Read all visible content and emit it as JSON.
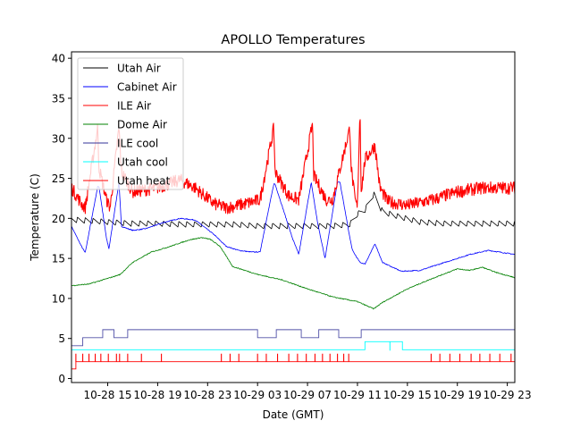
{
  "chart_data": {
    "type": "line",
    "title": "APOLLO Temperatures",
    "xlabel": "Date (GMT)",
    "ylabel": "Temperature (C)",
    "x_unit": "hours since 10-28 00:00 GMT",
    "xlim": [
      12.1,
      47.6
    ],
    "ylim": [
      -0.5,
      40.8
    ],
    "yticks": [
      0,
      5,
      10,
      15,
      20,
      25,
      30,
      35,
      40
    ],
    "xticks": [
      {
        "t": 15,
        "label": "10-28 15"
      },
      {
        "t": 19,
        "label": "10-28 19"
      },
      {
        "t": 23,
        "label": "10-28 23"
      },
      {
        "t": 27,
        "label": "10-29 03"
      },
      {
        "t": 31,
        "label": "10-29 07"
      },
      {
        "t": 35,
        "label": "10-29 11"
      },
      {
        "t": 39,
        "label": "10-29 15"
      },
      {
        "t": 43,
        "label": "10-29 19"
      },
      {
        "t": 47,
        "label": "10-29 23"
      }
    ],
    "grid": false,
    "legend_position": "top-left",
    "series": [
      {
        "name": "Utah Air",
        "color": "#000000",
        "style": "sawtooth",
        "x": [
          12.1,
          15.0,
          17.0,
          19.0,
          21.0,
          23.0,
          25.0,
          27.0,
          29.0,
          31.0,
          33.0,
          34.4,
          35.0,
          35.6,
          36.3,
          37.0,
          38.0,
          40.0,
          42.0,
          44.0,
          46.0,
          47.6
        ],
        "y": [
          19.8,
          19.5,
          19.3,
          19.3,
          19.2,
          19.2,
          19.2,
          19.0,
          19.0,
          19.0,
          19.0,
          19.2,
          20.5,
          21.0,
          23.0,
          20.8,
          20.3,
          19.5,
          19.3,
          19.3,
          19.3,
          19.3
        ]
      },
      {
        "name": "Cabinet Air",
        "color": "#0000ff",
        "x": [
          12.1,
          12.9,
          13.2,
          14.2,
          14.3,
          14.9,
          15.1,
          15.9,
          16.1,
          17.0,
          18.0,
          19.5,
          20.8,
          22.0,
          23.5,
          24.5,
          25.5,
          26.5,
          27.2,
          28.3,
          28.4,
          29.8,
          30.3,
          31.3,
          31.8,
          32.4,
          33.4,
          33.6,
          34.4,
          34.6,
          35.2,
          35.6,
          36.4,
          36.5,
          37.0,
          38.5,
          40.0,
          42.0,
          44.0,
          45.5,
          47.6
        ],
        "y": [
          19.0,
          16.5,
          15.7,
          24.0,
          24.0,
          17.5,
          16.2,
          24.5,
          19.0,
          18.5,
          18.7,
          19.5,
          20.0,
          19.8,
          18.0,
          16.5,
          16.0,
          15.8,
          15.8,
          24.3,
          24.3,
          17.5,
          15.5,
          24.5,
          19.5,
          15.0,
          24.5,
          24.5,
          17.5,
          16.0,
          14.5,
          14.3,
          16.8,
          16.5,
          14.5,
          13.4,
          13.5,
          14.5,
          15.5,
          16.0,
          15.5
        ]
      },
      {
        "name": "ILE Air",
        "color": "#ff0000",
        "style": "noisy",
        "x": [
          12.1,
          12.9,
          13.2,
          14.2,
          14.3,
          14.9,
          15.2,
          15.9,
          16.1,
          17.0,
          19.0,
          20.8,
          22.0,
          23.5,
          24.5,
          26.0,
          27.2,
          28.3,
          28.4,
          29.5,
          30.3,
          31.4,
          31.5,
          32.5,
          33.0,
          34.4,
          34.5,
          34.8,
          35.0,
          35.2,
          35.3,
          35.6,
          36.4,
          36.8,
          37.4,
          39.0,
          41.0,
          43.0,
          45.0,
          47.6
        ],
        "y": [
          23.5,
          21.5,
          21.0,
          31.0,
          26.0,
          22.0,
          21.0,
          31.0,
          25.5,
          23.0,
          23.5,
          24.5,
          23.5,
          21.5,
          21.0,
          21.5,
          22.0,
          31.0,
          25.5,
          22.5,
          22.0,
          31.5,
          25.0,
          22.0,
          22.0,
          31.0,
          26.0,
          22.0,
          21.0,
          33.5,
          23.0,
          27.0,
          28.8,
          23.5,
          21.8,
          21.3,
          22.0,
          23.0,
          23.5,
          23.5
        ]
      },
      {
        "name": "Dome Air",
        "color": "#008000",
        "x": [
          12.1,
          13.5,
          15.0,
          16.0,
          17.0,
          18.5,
          20.0,
          21.5,
          22.5,
          23.2,
          24.0,
          25.0,
          27.0,
          29.0,
          31.0,
          33.0,
          35.0,
          36.3,
          37.0,
          39.0,
          41.0,
          43.0,
          44.0,
          45.0,
          46.0,
          47.6
        ],
        "y": [
          11.6,
          11.8,
          12.5,
          13.0,
          14.5,
          15.8,
          16.5,
          17.3,
          17.6,
          17.4,
          16.5,
          14.0,
          13.0,
          12.3,
          11.2,
          10.2,
          9.6,
          8.7,
          9.5,
          11.2,
          12.5,
          13.7,
          13.5,
          13.9,
          13.3,
          12.6
        ]
      },
      {
        "name": "ILE cool",
        "color": "#333399",
        "style": "step",
        "x": [
          12.1,
          13.0,
          14.6,
          15.5,
          16.6,
          27.0,
          28.5,
          30.5,
          31.9,
          33.5,
          35.3,
          47.6
        ],
        "y": [
          4.1,
          5.1,
          6.1,
          5.1,
          6.1,
          5.1,
          6.1,
          5.1,
          6.1,
          5.1,
          6.1,
          6.1
        ]
      },
      {
        "name": "Utah cool",
        "color": "#00ffff",
        "style": "step",
        "x": [
          12.1,
          35.6,
          36.8,
          38.6,
          47.6
        ],
        "y": [
          3.6,
          4.6,
          4.6,
          3.6,
          3.6
        ],
        "spikes_at": [
          37.6
        ]
      },
      {
        "name": "Utah heat",
        "color": "#ff0000",
        "style": "pulses",
        "base_before": 1.2,
        "base": 2.1,
        "pulse_top": 3.1,
        "step_at": 12.45,
        "pulses_at": [
          12.45,
          13.0,
          13.5,
          14.0,
          14.45,
          15.05,
          15.7,
          15.95,
          16.6,
          17.7,
          19.3,
          24.1,
          24.8,
          25.5,
          27.0,
          27.7,
          28.6,
          29.5,
          30.2,
          30.9,
          31.6,
          32.2,
          32.8,
          33.4,
          33.9,
          34.3,
          40.9,
          41.6,
          42.4,
          43.2,
          44.1,
          44.8,
          45.6,
          46.4,
          47.3
        ]
      }
    ]
  }
}
